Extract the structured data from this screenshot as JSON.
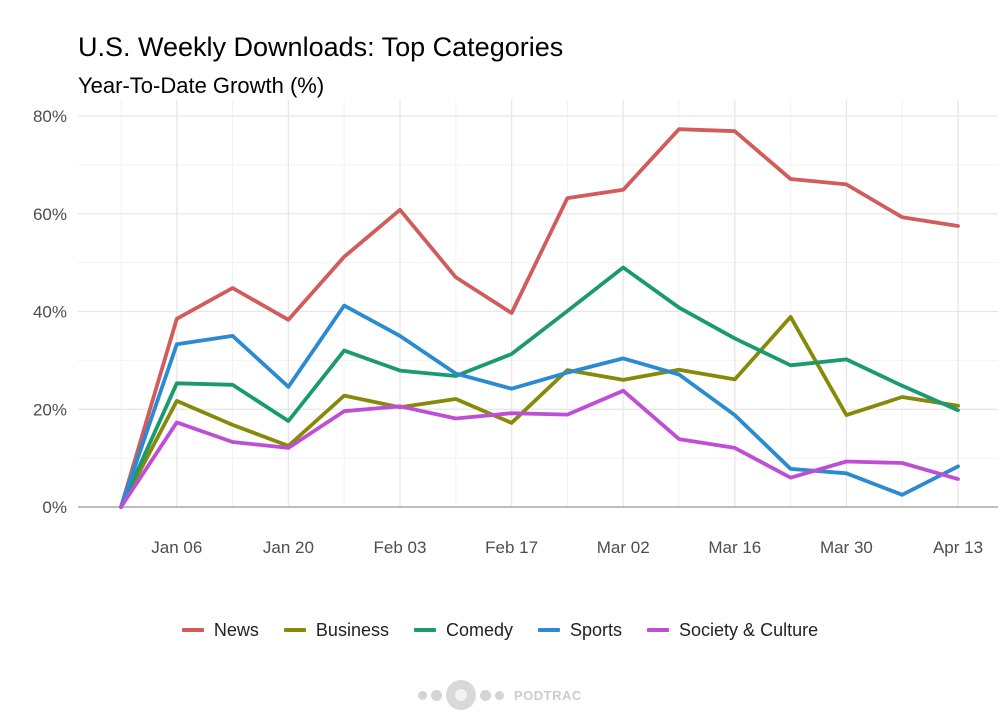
{
  "header": {
    "title": "U.S. Weekly Downloads: Top Categories",
    "subtitle": "Year-To-Date Growth (%)"
  },
  "chart_data": {
    "type": "line",
    "title": "U.S. Weekly Downloads: Top Categories",
    "subtitle": "Year-To-Date Growth (%)",
    "xlabel": "",
    "ylabel": "",
    "x": [
      "Dec 30",
      "Jan 06",
      "Jan 13",
      "Jan 20",
      "Jan 27",
      "Feb 03",
      "Feb 10",
      "Feb 17",
      "Feb 24",
      "Mar 02",
      "Mar 09",
      "Mar 16",
      "Mar 23",
      "Mar 30",
      "Apr 06",
      "Apr 13"
    ],
    "x_tick_labels": [
      "Jan 06",
      "Jan 20",
      "Feb 03",
      "Feb 17",
      "Mar 02",
      "Mar 16",
      "Mar 30",
      "Apr 13"
    ],
    "ylim": [
      0,
      80
    ],
    "y_ticks": [
      0,
      20,
      40,
      60,
      80
    ],
    "y_tick_labels": [
      "0%",
      "20%",
      "40%",
      "60%",
      "80%"
    ],
    "grid": true,
    "legend_position": "bottom",
    "series": [
      {
        "name": "News",
        "color": "#d25b5b",
        "values": [
          0,
          38.5,
          44.8,
          38.3,
          51.2,
          60.8,
          47,
          39.7,
          63.2,
          64.9,
          77.3,
          76.9,
          67.1,
          66,
          59.3,
          57.5
        ]
      },
      {
        "name": "Business",
        "color": "#868a08",
        "values": [
          0,
          21.7,
          16.8,
          12.5,
          22.8,
          20.4,
          22.1,
          17.2,
          28,
          26,
          28.1,
          26.1,
          38.9,
          18.8,
          22.5,
          20.7
        ]
      },
      {
        "name": "Comedy",
        "color": "#1a9a6e",
        "values": [
          0,
          25.3,
          25,
          17.6,
          32,
          27.9,
          26.8,
          31.3,
          40.1,
          49,
          40.8,
          34.5,
          29,
          30.2,
          24.8,
          19.8
        ]
      },
      {
        "name": "Sports",
        "color": "#2a8ad2",
        "values": [
          0,
          33.3,
          35,
          24.6,
          41.2,
          35,
          27.3,
          24.2,
          27.5,
          30.4,
          27.1,
          18.8,
          7.8,
          6.9,
          2.5,
          8.3
        ]
      },
      {
        "name": "Society & Culture",
        "color": "#be4fd4",
        "values": [
          0,
          17.3,
          13.3,
          12.1,
          19.6,
          20.6,
          18.1,
          19.2,
          18.9,
          23.8,
          13.9,
          12.1,
          6,
          9.3,
          9,
          5.7
        ]
      }
    ]
  },
  "footer": {
    "brand": "PODTRAC",
    "brand_icon": "podtrac-logo-icon"
  }
}
